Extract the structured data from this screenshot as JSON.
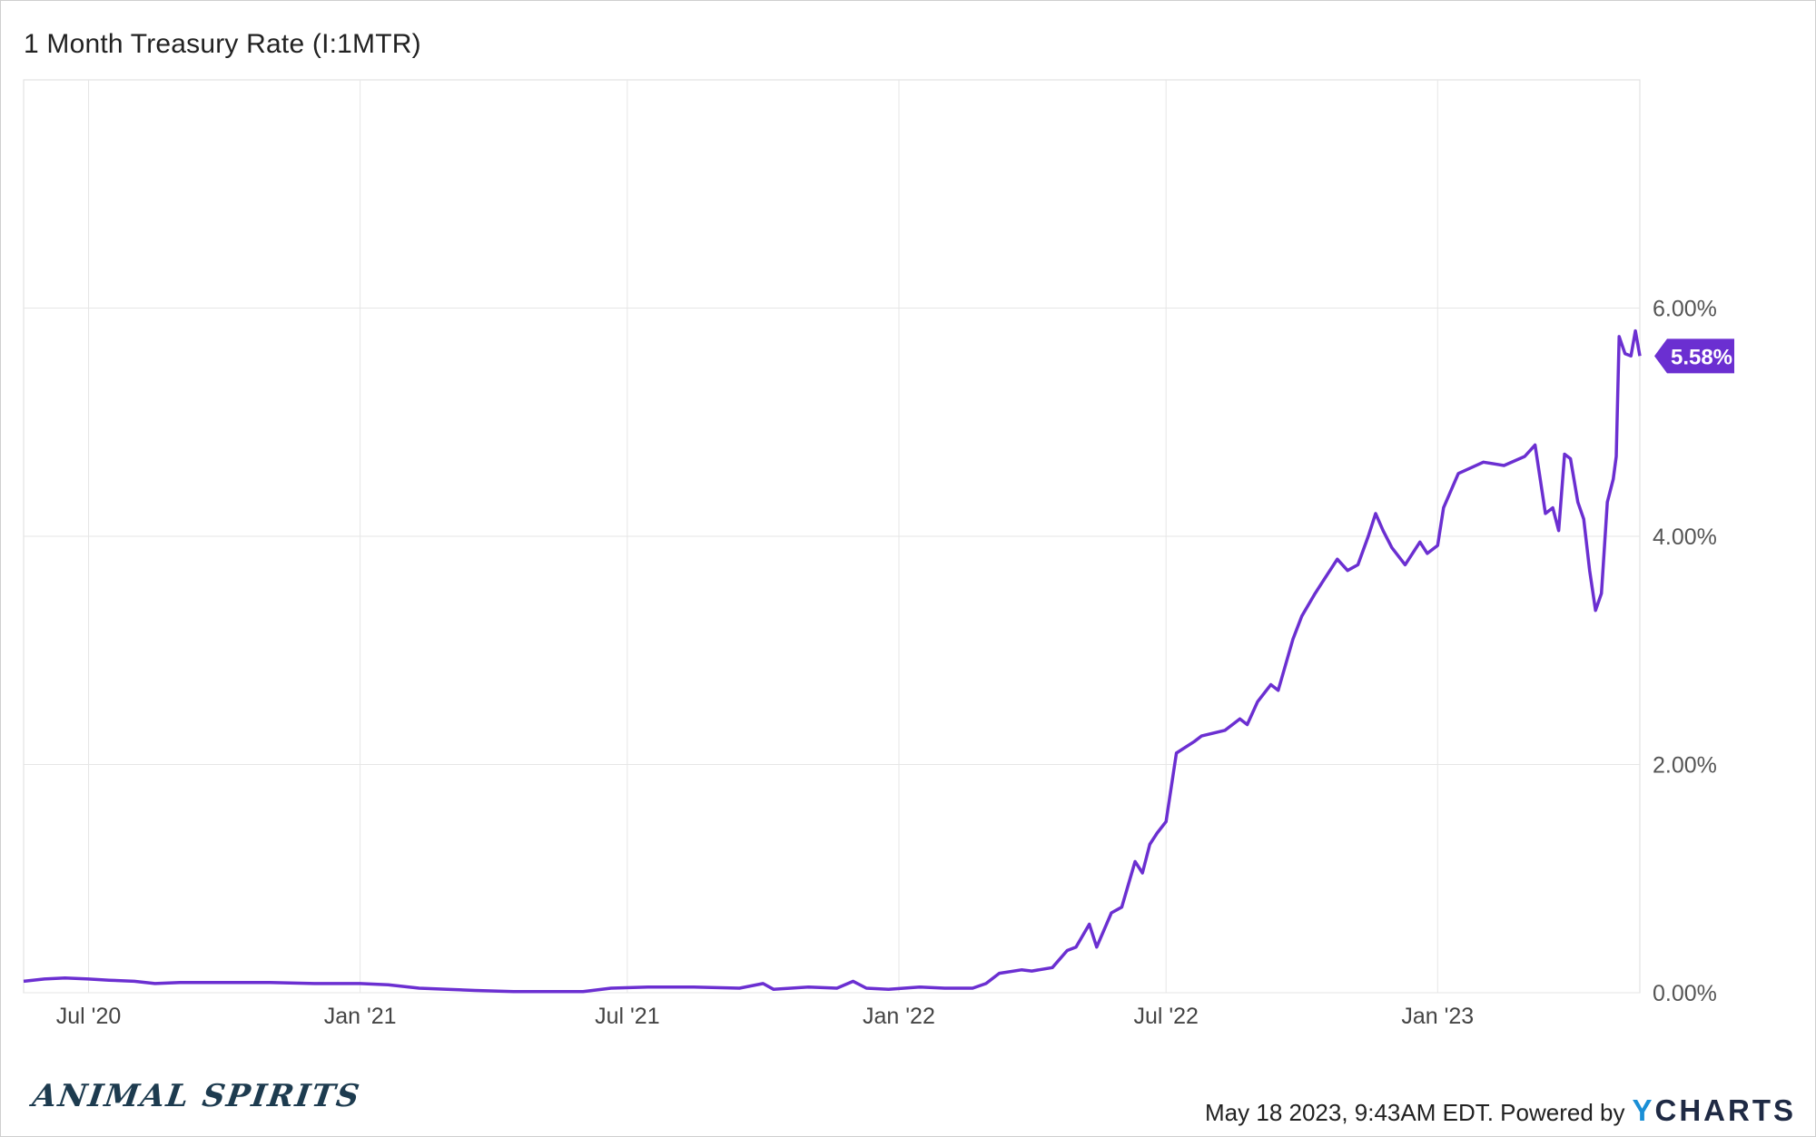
{
  "chart_data": {
    "type": "line",
    "title": "1 Month Treasury Rate (I:1MTR)",
    "xlabel": "",
    "ylabel": "",
    "x_ticks": [
      "Jul '20",
      "Jan '21",
      "Jul '21",
      "Jan '22",
      "Jul '22",
      "Jan '23"
    ],
    "y_ticks": [
      "0.00%",
      "2.00%",
      "4.00%",
      "6.00%"
    ],
    "ylim": [
      0,
      8
    ],
    "xlim": [
      "2020-05-18",
      "2023-05-18"
    ],
    "grid": true,
    "y_axis_side": "right",
    "series": [
      {
        "name": "",
        "color": "#6b2fd1",
        "points": [
          [
            "2020-05-18",
            0.1
          ],
          [
            "2020-06-01",
            0.12
          ],
          [
            "2020-06-15",
            0.13
          ],
          [
            "2020-07-01",
            0.12
          ],
          [
            "2020-07-15",
            0.11
          ],
          [
            "2020-08-01",
            0.1
          ],
          [
            "2020-08-15",
            0.08
          ],
          [
            "2020-09-01",
            0.09
          ],
          [
            "2020-10-01",
            0.09
          ],
          [
            "2020-11-01",
            0.09
          ],
          [
            "2020-12-01",
            0.08
          ],
          [
            "2021-01-01",
            0.08
          ],
          [
            "2021-01-20",
            0.07
          ],
          [
            "2021-02-10",
            0.04
          ],
          [
            "2021-03-01",
            0.03
          ],
          [
            "2021-03-20",
            0.02
          ],
          [
            "2021-04-15",
            0.01
          ],
          [
            "2021-05-10",
            0.01
          ],
          [
            "2021-06-01",
            0.01
          ],
          [
            "2021-06-20",
            0.04
          ],
          [
            "2021-07-15",
            0.05
          ],
          [
            "2021-08-15",
            0.05
          ],
          [
            "2021-09-15",
            0.04
          ],
          [
            "2021-10-01",
            0.08
          ],
          [
            "2021-10-08",
            0.03
          ],
          [
            "2021-11-01",
            0.05
          ],
          [
            "2021-11-20",
            0.04
          ],
          [
            "2021-12-01",
            0.1
          ],
          [
            "2021-12-10",
            0.04
          ],
          [
            "2021-12-25",
            0.03
          ],
          [
            "2022-01-15",
            0.05
          ],
          [
            "2022-02-01",
            0.04
          ],
          [
            "2022-02-20",
            0.04
          ],
          [
            "2022-03-01",
            0.08
          ],
          [
            "2022-03-10",
            0.17
          ],
          [
            "2022-03-25",
            0.2
          ],
          [
            "2022-04-01",
            0.19
          ],
          [
            "2022-04-15",
            0.22
          ],
          [
            "2022-04-25",
            0.37
          ],
          [
            "2022-05-01",
            0.4
          ],
          [
            "2022-05-10",
            0.6
          ],
          [
            "2022-05-15",
            0.4
          ],
          [
            "2022-05-25",
            0.7
          ],
          [
            "2022-06-01",
            0.75
          ],
          [
            "2022-06-10",
            1.15
          ],
          [
            "2022-06-15",
            1.05
          ],
          [
            "2022-06-20",
            1.3
          ],
          [
            "2022-06-25",
            1.4
          ],
          [
            "2022-07-01",
            1.5
          ],
          [
            "2022-07-08",
            2.1
          ],
          [
            "2022-07-20",
            2.2
          ],
          [
            "2022-07-25",
            2.25
          ],
          [
            "2022-08-10",
            2.3
          ],
          [
            "2022-08-20",
            2.4
          ],
          [
            "2022-08-25",
            2.35
          ],
          [
            "2022-09-01",
            2.55
          ],
          [
            "2022-09-10",
            2.7
          ],
          [
            "2022-09-15",
            2.65
          ],
          [
            "2022-09-25",
            3.1
          ],
          [
            "2022-10-01",
            3.3
          ],
          [
            "2022-10-10",
            3.5
          ],
          [
            "2022-10-15",
            3.6
          ],
          [
            "2022-10-25",
            3.8
          ],
          [
            "2022-11-01",
            3.7
          ],
          [
            "2022-11-08",
            3.75
          ],
          [
            "2022-11-15",
            4.0
          ],
          [
            "2022-11-20",
            4.2
          ],
          [
            "2022-11-25",
            4.05
          ],
          [
            "2022-12-01",
            3.9
          ],
          [
            "2022-12-10",
            3.75
          ],
          [
            "2022-12-20",
            3.95
          ],
          [
            "2022-12-25",
            3.85
          ],
          [
            "2023-01-01",
            3.92
          ],
          [
            "2023-01-05",
            4.25
          ],
          [
            "2023-01-15",
            4.55
          ],
          [
            "2023-02-01",
            4.65
          ],
          [
            "2023-02-15",
            4.62
          ],
          [
            "2023-03-01",
            4.7
          ],
          [
            "2023-03-08",
            4.8
          ],
          [
            "2023-03-15",
            4.2
          ],
          [
            "2023-03-20",
            4.25
          ],
          [
            "2023-03-24",
            4.05
          ],
          [
            "2023-03-28",
            4.72
          ],
          [
            "2023-04-01",
            4.68
          ],
          [
            "2023-04-06",
            4.3
          ],
          [
            "2023-04-10",
            4.15
          ],
          [
            "2023-04-14",
            3.7
          ],
          [
            "2023-04-18",
            3.35
          ],
          [
            "2023-04-22",
            3.5
          ],
          [
            "2023-04-26",
            4.3
          ],
          [
            "2023-04-30",
            4.5
          ],
          [
            "2023-05-02",
            4.7
          ],
          [
            "2023-05-04",
            5.75
          ],
          [
            "2023-05-08",
            5.6
          ],
          [
            "2023-05-12",
            5.58
          ],
          [
            "2023-05-15",
            5.8
          ],
          [
            "2023-05-18",
            5.58
          ]
        ]
      }
    ],
    "last_value_label": "5.58%"
  },
  "footer": {
    "brand": "ANIMAL SPIRITS",
    "timestamp": "May 18 2023, 9:43AM EDT. Powered by",
    "logo_y": "Y",
    "logo_rest": "CHARTS"
  }
}
